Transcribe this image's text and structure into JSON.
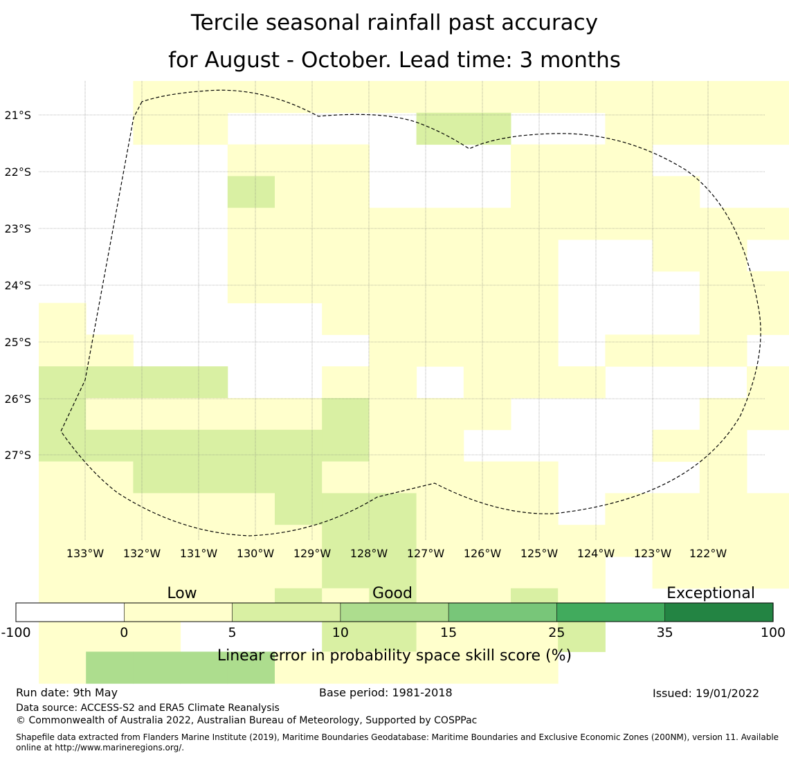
{
  "title": {
    "line1": "Tercile seasonal rainfall past accuracy",
    "line2": "for August - October. Lead time: 3 months"
  },
  "map": {
    "lon_labels": [
      "133°W",
      "132°W",
      "131°W",
      "130°W",
      "129°W",
      "128°W",
      "127°W",
      "126°W",
      "125°W",
      "124°W",
      "123°W",
      "122°W"
    ],
    "lat_labels": [
      "21°S",
      "22°S",
      "23°S",
      "24°S",
      "25°S",
      "26°S",
      "27°S"
    ],
    "grid": true,
    "boundary_style": "dashed"
  },
  "legend": {
    "categories": [
      "Low",
      "Good",
      "Exceptional"
    ],
    "ticks": [
      "-100",
      "0",
      "5",
      "10",
      "15",
      "25",
      "35",
      "100"
    ],
    "colors": [
      "#ffffff",
      "#ffffcc",
      "#d9f0a3",
      "#addd8e",
      "#78c679",
      "#41ab5d",
      "#238443"
    ],
    "label": "Linear error in probability space skill score (%)"
  },
  "footer": {
    "run_date": "Run date: 9th May",
    "base_period": "Base period: 1981-2018",
    "issued": "Issued: 19/01/2022",
    "data_source": "Data source: ACCESS-S2 and ERA5 Climate Reanalysis",
    "copyright": "© Commonwealth of Australia 2022, Australian Bureau of Meteorology, Supported by COSPPac",
    "shapefile": "Shapefile data extracted from Flanders Marine Institute (2019), Maritime Boundaries Geodatabase: Maritime Boundaries and Exclusive Economic Zones (200NM), version 11. Available online at http://www.marineregions.org/."
  }
}
